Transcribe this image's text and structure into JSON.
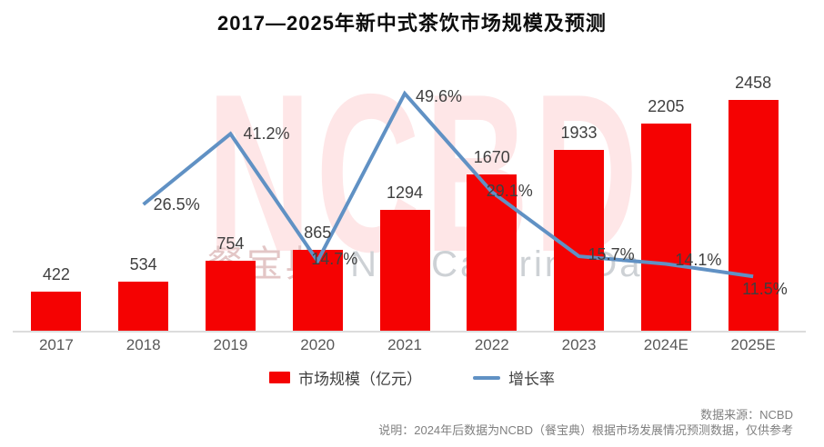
{
  "page": {
    "title": "2017—2025年新中式茶饮市场规模及预测"
  },
  "watermark": {
    "big": "NCBD",
    "cn": "餐宝典",
    "en": "NewCateringData"
  },
  "legend": {
    "bar_label": "市场规模（亿元）",
    "line_label": "增长率"
  },
  "footer": {
    "source": "数据来源：NCBD",
    "note": "说明：2024年后数据为NCBD（餐宝典）根据市场发展情况预测数据，仅供参考"
  },
  "colors": {
    "bar": "#f50202",
    "line": "#6091c4",
    "value_label": "#3f3f3f",
    "axis_label": "#595959",
    "note_text": "#808080",
    "axis_line": "#dcdcdc"
  },
  "chart_data": {
    "type": "bar",
    "title": "2017—2025年新中式茶饮市场规模及预测",
    "categories": [
      "2017",
      "2018",
      "2019",
      "2020",
      "2021",
      "2022",
      "2023",
      "2024E",
      "2025E"
    ],
    "series": [
      {
        "name": "市场规模（亿元）",
        "type": "bar",
        "color": "#f50202",
        "values": [
          422,
          534,
          754,
          865,
          1294,
          1670,
          1933,
          2205,
          2458
        ]
      },
      {
        "name": "增长率",
        "type": "line",
        "color": "#6091c4",
        "unit": "%",
        "values": [
          null,
          26.5,
          41.2,
          14.7,
          49.6,
          29.1,
          15.7,
          14.1,
          11.5
        ]
      }
    ],
    "xlabel": "",
    "ylabel": "",
    "ylim_left": [
      0,
      2700
    ],
    "ylim_right": [
      0,
      53
    ],
    "grid": false,
    "value_labels": true,
    "legend_position": "bottom"
  }
}
